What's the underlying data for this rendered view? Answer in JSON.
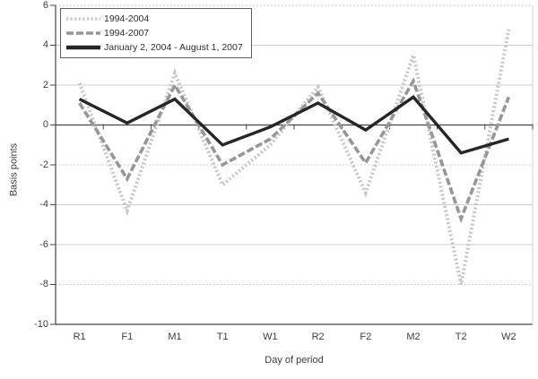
{
  "chart_data": {
    "type": "line",
    "title": "",
    "xlabel": "Day of period",
    "ylabel": "Basis points",
    "categories": [
      "R1",
      "F1",
      "M1",
      "T1",
      "W1",
      "R2",
      "F2",
      "M2",
      "T2",
      "W2"
    ],
    "series": [
      {
        "name": "1994-2004",
        "color": "#c6c6c6",
        "line_style": "dotted",
        "values": [
          2.1,
          -4.3,
          2.6,
          -3.0,
          -1.0,
          1.9,
          -3.4,
          3.5,
          -8.0,
          4.8
        ]
      },
      {
        "name": "1994-2007",
        "color": "#979797",
        "line_style": "dashed",
        "values": [
          1.1,
          -2.7,
          2.0,
          -2.0,
          -0.7,
          1.6,
          -1.9,
          2.2,
          -4.7,
          1.4
        ]
      },
      {
        "name": "January 2, 2004 - August 1, 2007",
        "color": "#262626",
        "line_style": "solid",
        "values": [
          1.3,
          0.1,
          1.3,
          -1.0,
          -0.1,
          1.1,
          -0.25,
          1.4,
          -1.4,
          -0.7
        ]
      }
    ],
    "ylim": [
      -10,
      6
    ],
    "yticks": [
      6,
      4,
      2,
      0,
      -2,
      -4,
      -6,
      -8,
      -10
    ],
    "dotted_gridlines": [
      6,
      -2,
      -8
    ],
    "grid": true,
    "legend_position": "top-left"
  }
}
